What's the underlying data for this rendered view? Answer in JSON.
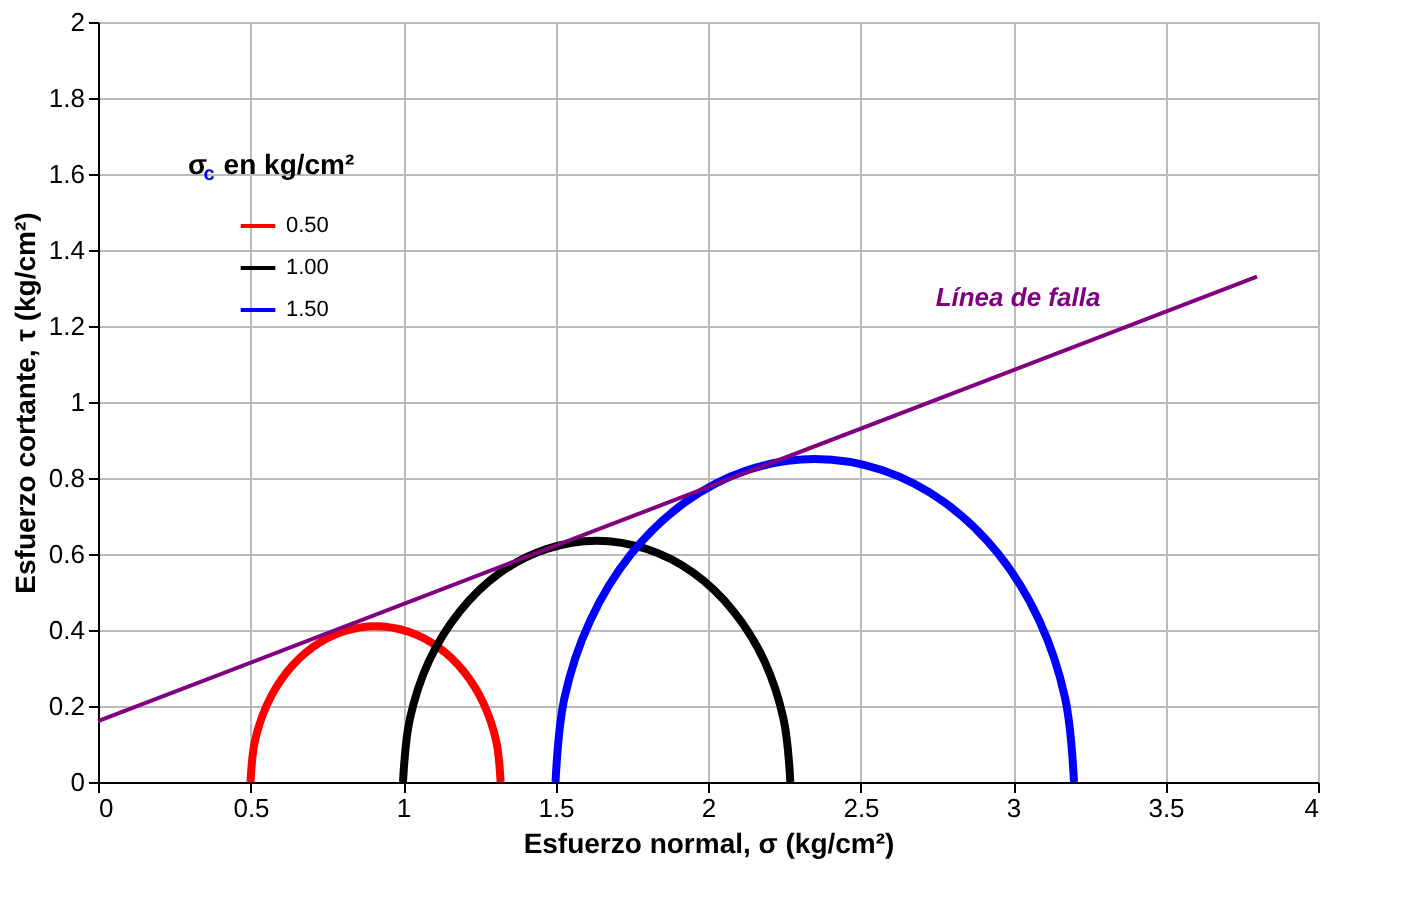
{
  "chart_data": {
    "type": "line",
    "xlabel": "Esfuerzo normal, σ (kg/cm²)",
    "ylabel": "Esfuerzo cortante, τ (kg/cm²)",
    "legend_title": "σ$_{c}$ en kg/cm²",
    "legend": "top left",
    "grid": true,
    "marker": "none",
    "line_style": "solid",
    "xlim": [
      0,
      4
    ],
    "ylim": [
      0,
      2
    ],
    "xticks": [
      0,
      0.5,
      1,
      1.5,
      2,
      2.5,
      3,
      3.5,
      4
    ],
    "yticks": [
      0,
      0.2,
      0.4,
      0.6,
      0.8,
      1,
      1.2,
      1.4,
      1.6,
      1.8,
      2
    ],
    "series": [
      {
        "name": "0.50",
        "color": "#ff0000",
        "x": [
          1.32,
          1.306,
          1.265,
          1.2,
          1.115,
          1.016,
          0.91,
          0.804,
          0.705,
          0.62,
          0.555,
          0.514,
          0.5
        ],
        "values": [
          0,
          0.106,
          0.205,
          0.29,
          0.355,
          0.396,
          0.41,
          0.396,
          0.355,
          0.29,
          0.205,
          0.106,
          0
        ]
      },
      {
        "name": "1.00",
        "color": "#000000",
        "x": [
          2.27,
          2.248,
          2.185,
          2.084,
          1.953,
          1.799,
          1.635,
          1.471,
          1.317,
          1.186,
          1.085,
          1.022,
          1.0
        ],
        "values": [
          0,
          0.164,
          0.318,
          0.449,
          0.55,
          0.613,
          0.635,
          0.613,
          0.55,
          0.449,
          0.318,
          0.164,
          0
        ]
      },
      {
        "name": "1.50",
        "color": "#0000ff",
        "x": [
          3.2,
          3.171,
          3.086,
          2.951,
          2.775,
          2.57,
          2.35,
          2.13,
          1.925,
          1.749,
          1.614,
          1.529,
          1.5
        ],
        "values": [
          0,
          0.22,
          0.425,
          0.601,
          0.736,
          0.821,
          0.85,
          0.821,
          0.736,
          0.601,
          0.425,
          0.22,
          0
        ]
      },
      {
        "color": "#800080",
        "x": [
          0,
          3.8
        ],
        "values": [
          0.16,
          1.33
        ]
      }
    ],
    "annotations": [
      "Línea de falla"
    ]
  }
}
